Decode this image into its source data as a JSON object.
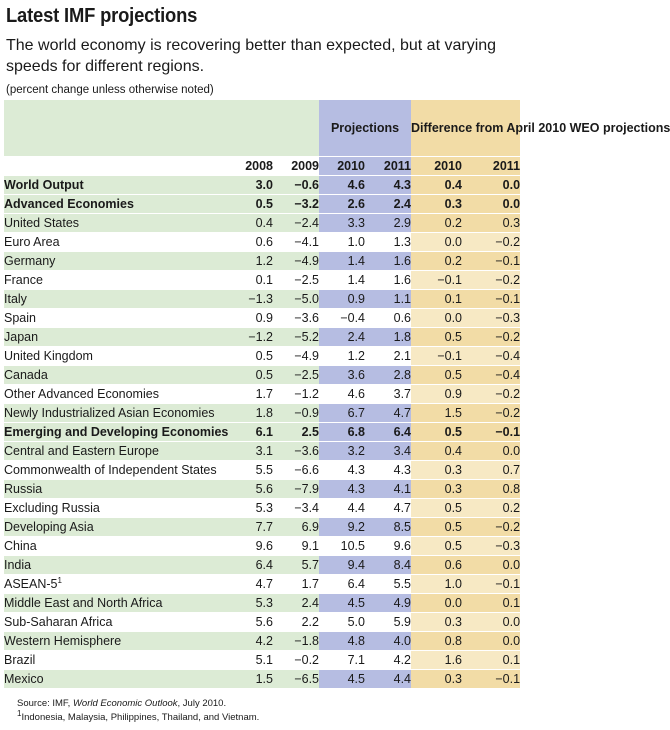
{
  "header": {
    "title": "Latest IMF projections",
    "subtitle": "The world economy is recovering better than expected, but at varying speeds for different regions.",
    "note": "(percent change unless otherwise noted)"
  },
  "columns": {
    "projections_label": "Projections",
    "difference_label": "Difference from April 2010 WEO projections",
    "years": [
      "2008",
      "2009",
      "2010",
      "2011",
      "2010",
      "2011"
    ]
  },
  "rows": [
    {
      "label": "World Output",
      "bold": true,
      "indent": false,
      "v": [
        "3.0",
        "−0.6",
        "4.6",
        "4.3",
        "0.4",
        "0.0"
      ]
    },
    {
      "label": "Advanced Economies",
      "bold": true,
      "indent": false,
      "v": [
        "0.5",
        "−3.2",
        "2.6",
        "2.4",
        "0.3",
        "0.0"
      ]
    },
    {
      "label": "United States",
      "bold": false,
      "indent": false,
      "v": [
        "0.4",
        "−2.4",
        "3.3",
        "2.9",
        "0.2",
        "0.3"
      ]
    },
    {
      "label": "Euro Area",
      "bold": false,
      "indent": false,
      "v": [
        "0.6",
        "−4.1",
        "1.0",
        "1.3",
        "0.0",
        "−0.2"
      ]
    },
    {
      "label": "Germany",
      "bold": false,
      "indent": true,
      "v": [
        "1.2",
        "−4.9",
        "1.4",
        "1.6",
        "0.2",
        "−0.1"
      ]
    },
    {
      "label": "France",
      "bold": false,
      "indent": true,
      "v": [
        "0.1",
        "−2.5",
        "1.4",
        "1.6",
        "−0.1",
        "−0.2"
      ]
    },
    {
      "label": "Italy",
      "bold": false,
      "indent": true,
      "v": [
        "−1.3",
        "−5.0",
        "0.9",
        "1.1",
        "0.1",
        "−0.1"
      ]
    },
    {
      "label": "Spain",
      "bold": false,
      "indent": true,
      "v": [
        "0.9",
        "−3.6",
        "−0.4",
        "0.6",
        "0.0",
        "−0.3"
      ]
    },
    {
      "label": "Japan",
      "bold": false,
      "indent": false,
      "v": [
        "−1.2",
        "−5.2",
        "2.4",
        "1.8",
        "0.5",
        "−0.2"
      ]
    },
    {
      "label": "United Kingdom",
      "bold": false,
      "indent": false,
      "v": [
        "0.5",
        "−4.9",
        "1.2",
        "2.1",
        "−0.1",
        "−0.4"
      ]
    },
    {
      "label": "Canada",
      "bold": false,
      "indent": false,
      "v": [
        "0.5",
        "−2.5",
        "3.6",
        "2.8",
        "0.5",
        "−0.4"
      ]
    },
    {
      "label": "Other Advanced Economies",
      "bold": false,
      "indent": false,
      "v": [
        "1.7",
        "−1.2",
        "4.6",
        "3.7",
        "0.9",
        "−0.2"
      ]
    },
    {
      "label": "Newly Industrialized Asian Economies",
      "bold": false,
      "indent": true,
      "v": [
        "1.8",
        "−0.9",
        "6.7",
        "4.7",
        "1.5",
        "−0.2"
      ]
    },
    {
      "label": "Emerging and Developing Economies",
      "bold": true,
      "indent": false,
      "v": [
        "6.1",
        "2.5",
        "6.8",
        "6.4",
        "0.5",
        "−0.1"
      ]
    },
    {
      "label": "Central and Eastern Europe",
      "bold": false,
      "indent": false,
      "v": [
        "3.1",
        "−3.6",
        "3.2",
        "3.4",
        "0.4",
        "0.0"
      ]
    },
    {
      "label": "Commonwealth of Independent States",
      "bold": false,
      "indent": false,
      "v": [
        "5.5",
        "−6.6",
        "4.3",
        "4.3",
        "0.3",
        "0.7"
      ]
    },
    {
      "label": "Russia",
      "bold": false,
      "indent": true,
      "v": [
        "5.6",
        "−7.9",
        "4.3",
        "4.1",
        "0.3",
        "0.8"
      ]
    },
    {
      "label": "Excluding Russia",
      "bold": false,
      "indent": true,
      "v": [
        "5.3",
        "−3.4",
        "4.4",
        "4.7",
        "0.5",
        "0.2"
      ]
    },
    {
      "label": "Developing Asia",
      "bold": false,
      "indent": false,
      "v": [
        "7.7",
        "6.9",
        "9.2",
        "8.5",
        "0.5",
        "−0.2"
      ]
    },
    {
      "label": "China",
      "bold": false,
      "indent": true,
      "v": [
        "9.6",
        "9.1",
        "10.5",
        "9.6",
        "0.5",
        "−0.3"
      ]
    },
    {
      "label": "India",
      "bold": false,
      "indent": true,
      "v": [
        "6.4",
        "5.7",
        "9.4",
        "8.4",
        "0.6",
        "0.0"
      ]
    },
    {
      "label": "ASEAN-5",
      "sup": "1",
      "bold": false,
      "indent": true,
      "v": [
        "4.7",
        "1.7",
        "6.4",
        "5.5",
        "1.0",
        "−0.1"
      ]
    },
    {
      "label": "Middle East and North Africa",
      "bold": false,
      "indent": false,
      "v": [
        "5.3",
        "2.4",
        "4.5",
        "4.9",
        "0.0",
        "0.1"
      ]
    },
    {
      "label": "Sub-Saharan Africa",
      "bold": false,
      "indent": false,
      "v": [
        "5.6",
        "2.2",
        "5.0",
        "5.9",
        "0.3",
        "0.0"
      ]
    },
    {
      "label": "Western Hemisphere",
      "bold": false,
      "indent": false,
      "v": [
        "4.2",
        "−1.8",
        "4.8",
        "4.0",
        "0.8",
        "0.0"
      ]
    },
    {
      "label": "Brazil",
      "bold": false,
      "indent": true,
      "v": [
        "5.1",
        "−0.2",
        "7.1",
        "4.2",
        "1.6",
        "0.1"
      ]
    },
    {
      "label": "Mexico",
      "bold": false,
      "indent": true,
      "v": [
        "1.5",
        "−6.5",
        "4.5",
        "4.4",
        "0.3",
        "−0.1"
      ]
    }
  ],
  "footer": {
    "source_prefix": "Source: IMF, ",
    "source_title": "World Economic Outlook",
    "source_suffix": ", July 2010.",
    "footnote_mark": "1",
    "footnote_text": "Indonesia, Malaysia, Philippines, Thailand, and Vietnam."
  },
  "colors": {
    "green_band": "#dcebd5",
    "projection_blue": "#b6bde2",
    "difference_tan": "#f2dca6",
    "difference_light": "#f7e9c4"
  }
}
